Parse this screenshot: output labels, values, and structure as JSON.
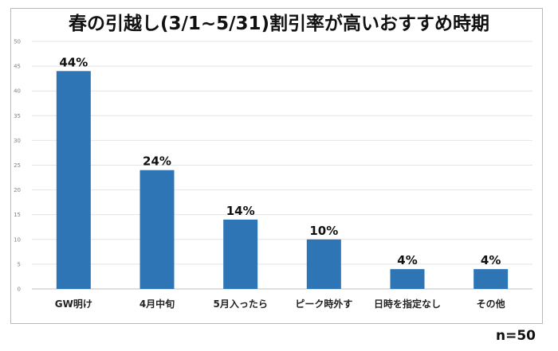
{
  "chart_data": {
    "type": "bar",
    "title": "春の引越し(3/1~5/31)割引率が高いおすすめ時期",
    "categories": [
      "GW明け",
      "4月中旬",
      "5月入ったら",
      "ピーク時外す",
      "日時を指定なし",
      "その他"
    ],
    "values": [
      44,
      24,
      14,
      10,
      4,
      4
    ],
    "data_labels": [
      "44%",
      "24%",
      "14%",
      "10%",
      "4%",
      "4%"
    ],
    "ylim": [
      0,
      50
    ],
    "yticks": [
      0,
      5,
      10,
      15,
      20,
      25,
      30,
      35,
      40,
      45,
      50
    ],
    "grid": true,
    "bar_color": "#2e75b6",
    "note": "n=50"
  }
}
